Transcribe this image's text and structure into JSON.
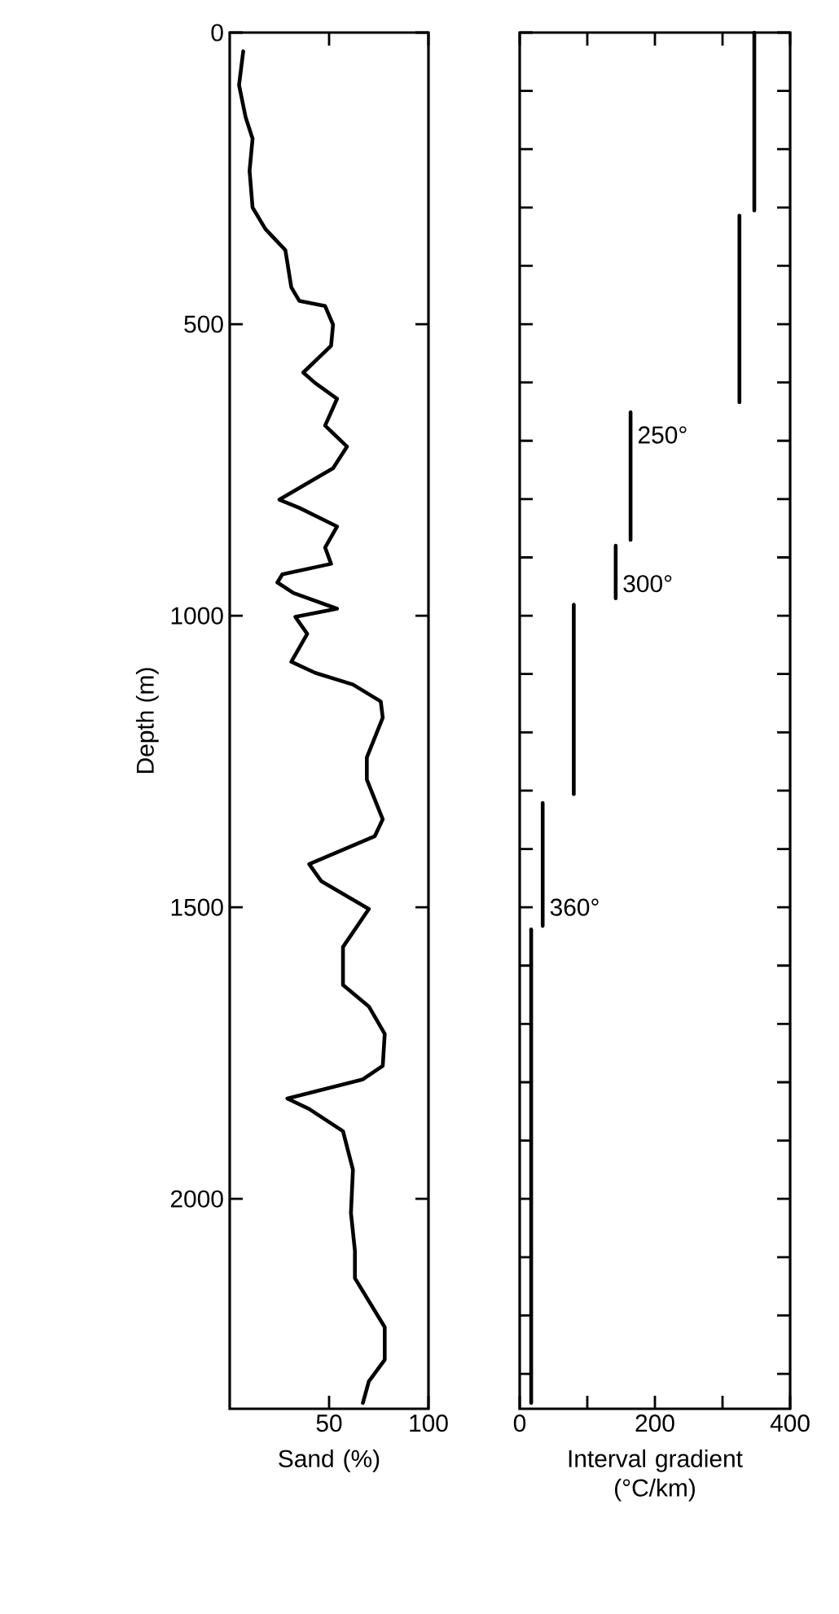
{
  "chart_data": [
    {
      "type": "line",
      "xlabel": "Sand (%)",
      "ylabel": "Depth (m)",
      "xlim": [
        0,
        100
      ],
      "xticks": [
        50,
        100
      ],
      "ylim": [
        2360,
        0
      ],
      "yticks": [
        0,
        500,
        1000,
        1500,
        2000
      ],
      "series": [
        {
          "color": "#000000",
          "x": [
            6.8,
            4.7,
            8,
            11.5,
            10,
            11.5,
            18,
            28,
            31,
            35,
            48,
            52,
            51,
            37,
            43,
            54,
            48,
            59,
            52,
            25,
            35,
            54,
            48,
            51,
            26.5,
            24,
            32,
            54,
            33,
            39,
            31,
            43,
            62,
            76,
            77,
            69,
            69,
            77,
            73,
            40,
            46,
            70,
            57,
            57,
            70,
            78,
            77,
            67,
            29,
            40,
            57,
            62,
            61,
            63,
            63,
            78,
            78,
            70,
            67
          ],
          "values": [
            32,
            90,
            145,
            182,
            237,
            300,
            337,
            373,
            437,
            460,
            469,
            501,
            537,
            583,
            601,
            628,
            674,
            710,
            747,
            801,
            815,
            847,
            883,
            911,
            929,
            943,
            961,
            988,
            1002,
            1031,
            1079,
            1098,
            1118,
            1147,
            1175,
            1243,
            1281,
            1349,
            1378,
            1426,
            1455,
            1503,
            1568,
            1633,
            1670,
            1717,
            1772,
            1795,
            1828,
            1846,
            1884,
            1950,
            2024,
            2089,
            2136,
            2220,
            2276,
            2313,
            2350
          ]
        }
      ]
    },
    {
      "type": "line",
      "xlabel": "Interval gradient (°C/km)",
      "xlim": [
        0,
        400
      ],
      "xticks": [
        0,
        {
          "value": 100,
          "label": null
        },
        200,
        {
          "value": 300,
          "label": null
        },
        400
      ],
      "ylim": [
        2360,
        0
      ],
      "tick_labels": "x",
      "yticks": [
        {
          "value": 0,
          "label": null
        },
        {
          "value": 100,
          "label": null
        },
        {
          "value": 200,
          "label": null
        },
        {
          "value": 300,
          "label": null
        },
        {
          "value": 400,
          "label": null
        },
        {
          "value": 500,
          "label": null
        },
        {
          "value": 600,
          "label": null
        },
        {
          "value": 700,
          "label": null
        },
        {
          "value": 800,
          "label": null
        },
        {
          "value": 900,
          "label": null
        },
        {
          "value": 1000,
          "label": null
        },
        {
          "value": 1100,
          "label": null
        },
        {
          "value": 1200,
          "label": null
        },
        {
          "value": 1300,
          "label": null
        },
        {
          "value": 1400,
          "label": null
        },
        {
          "value": 1500,
          "label": null
        },
        {
          "value": 1600,
          "label": null
        },
        {
          "value": 1700,
          "label": null
        },
        {
          "value": 1800,
          "label": null
        },
        {
          "value": 1900,
          "label": null
        },
        {
          "value": 2000,
          "label": null
        },
        {
          "value": 2100,
          "label": null
        },
        {
          "value": 2200,
          "label": null
        },
        {
          "value": 2300,
          "label": null
        }
      ],
      "annotations": [
        {
          "text": "250°",
          "x": 164,
          "y": 690
        },
        {
          "text": "300°",
          "x": 142,
          "y": 945
        },
        {
          "text": "360°",
          "x": 34,
          "y": 1500
        }
      ],
      "series": [
        {
          "color": "#000000",
          "x": [
            347,
            347
          ],
          "values": [
            0,
            305
          ]
        },
        {
          "color": "#000000",
          "x": [
            325,
            325
          ],
          "values": [
            314,
            634
          ]
        },
        {
          "color": "#000000",
          "x": [
            164,
            164
          ],
          "values": [
            651,
            870
          ]
        },
        {
          "color": "#000000",
          "x": [
            142,
            142
          ],
          "values": [
            880,
            970
          ]
        },
        {
          "color": "#000000",
          "x": [
            80,
            80
          ],
          "values": [
            981,
            1306
          ]
        },
        {
          "color": "#000000",
          "x": [
            34,
            34
          ],
          "values": [
            1321,
            1532
          ]
        },
        {
          "color": "#000000",
          "x": [
            17,
            17
          ],
          "values": [
            1538,
            2350
          ]
        }
      ]
    }
  ]
}
